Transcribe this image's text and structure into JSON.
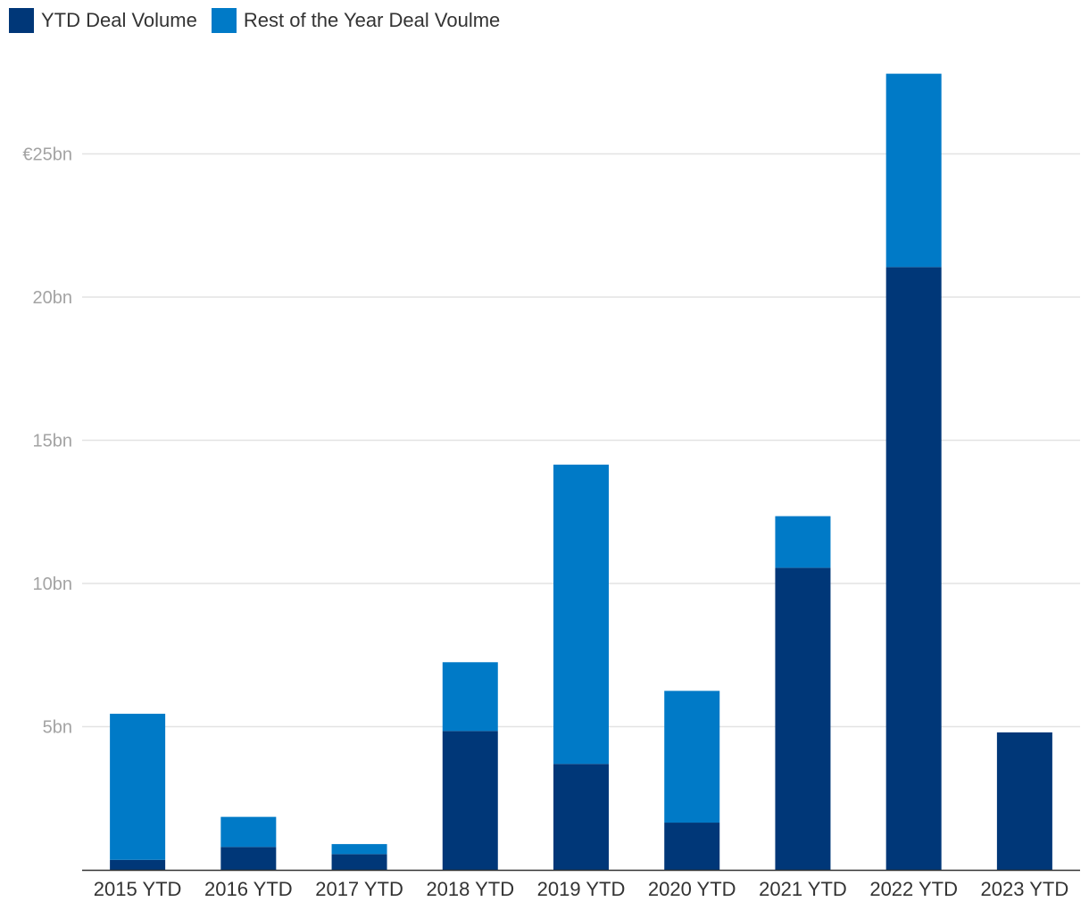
{
  "chart_data": {
    "type": "bar",
    "stacked": true,
    "title": "",
    "xlabel": "",
    "ylabel": "",
    "categories": [
      "2015 YTD",
      "2016 YTD",
      "2017 YTD",
      "2018 YTD",
      "2019 YTD",
      "2020 YTD",
      "2021 YTD",
      "2022 YTD",
      "2023 YTD"
    ],
    "series": [
      {
        "name": "YTD Deal Volume",
        "color": "#003778",
        "values": [
          0.35,
          0.8,
          0.55,
          4.85,
          3.7,
          1.65,
          10.55,
          21.05,
          4.8
        ]
      },
      {
        "name": "Rest of the Year Deal Voulme",
        "color": "#007ac7",
        "values": [
          5.1,
          1.05,
          0.35,
          2.4,
          10.45,
          4.6,
          1.8,
          6.75,
          0
        ]
      }
    ],
    "ylim": [
      0,
      28
    ],
    "y_ticks": [
      {
        "value": 5,
        "label": "5bn"
      },
      {
        "value": 10,
        "label": "10bn"
      },
      {
        "value": 15,
        "label": "15bn"
      },
      {
        "value": 20,
        "label": "20bn"
      },
      {
        "value": 25,
        "label": "€25bn"
      }
    ],
    "grid": true,
    "legend_position": "top-left"
  }
}
